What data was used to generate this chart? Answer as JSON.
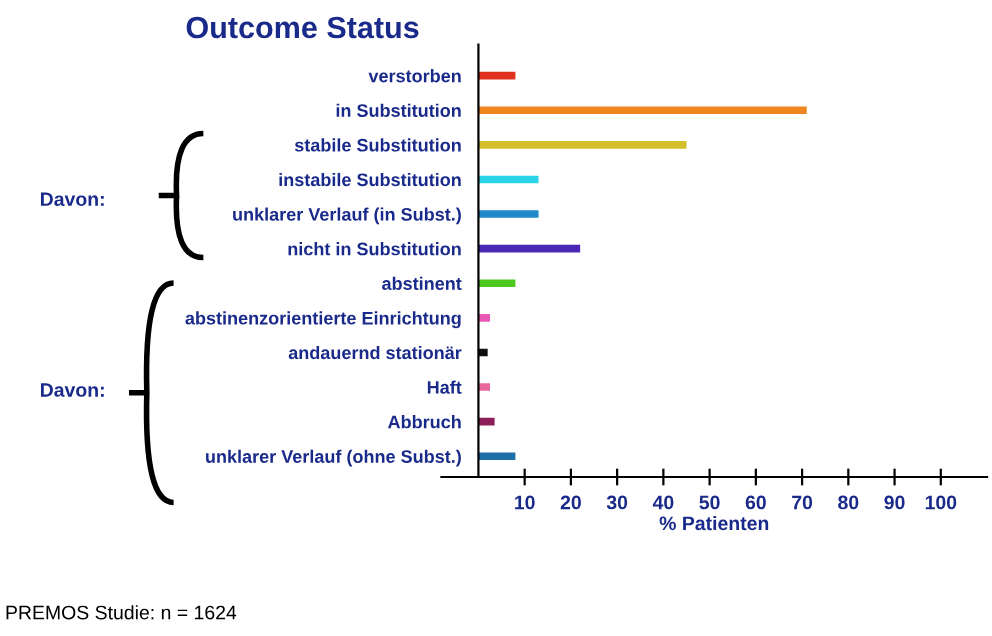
{
  "chart_data": {
    "type": "bar",
    "orientation": "horizontal",
    "title": "Outcome Status",
    "xlabel": "% Patienten",
    "categories": [
      "verstorben",
      "in Substitution",
      "stabile Substitution",
      "instabile Substitution",
      "unklarer Verlauf (in Subst.)",
      "nicht in Substitution",
      "abstinent",
      "abstinenzorientierte Einrichtung",
      "andauernd stationär",
      "Haft",
      "Abbruch",
      "unklarer Verlauf (ohne Subst.)"
    ],
    "values": [
      8,
      71,
      45,
      13,
      13,
      22,
      8,
      2.5,
      2,
      2.5,
      3.5,
      8
    ],
    "colors": [
      "#e0301e",
      "#f0841e",
      "#d4be2a",
      "#2ad4e6",
      "#1e88c8",
      "#4a28b4",
      "#4cc81e",
      "#e858b4",
      "#101010",
      "#e8689c",
      "#8c1e5a",
      "#1e6ea8"
    ],
    "xlim": [
      -8,
      110
    ],
    "xticks": [
      10,
      20,
      30,
      40,
      50,
      60,
      70,
      80,
      90,
      100
    ],
    "grid": false,
    "legend": false,
    "annotations": [
      "Davon:",
      "Davon:",
      "PREMOS Studie: n = 1624"
    ]
  }
}
